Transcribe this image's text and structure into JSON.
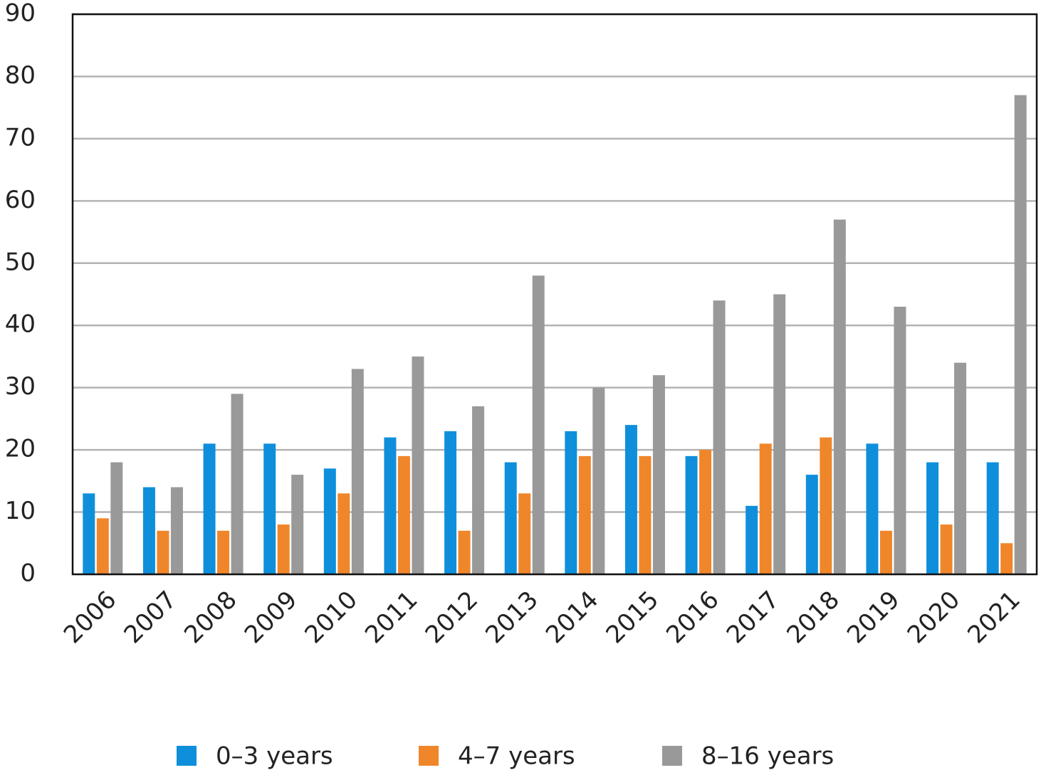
{
  "chart_data": {
    "type": "bar",
    "categories": [
      "2006",
      "2007",
      "2008",
      "2009",
      "2010",
      "2011",
      "2012",
      "2013",
      "2014",
      "2015",
      "2016",
      "2017",
      "2018",
      "2019",
      "2020",
      "2021"
    ],
    "series": [
      {
        "name": "0–3 years",
        "color": "#0f8fdb",
        "values": [
          13,
          14,
          21,
          21,
          17,
          22,
          23,
          18,
          23,
          24,
          19,
          11,
          16,
          21,
          18,
          18
        ]
      },
      {
        "name": "4–7 years",
        "color": "#f0862a",
        "values": [
          9,
          7,
          7,
          8,
          13,
          19,
          7,
          13,
          19,
          19,
          20,
          21,
          22,
          7,
          8,
          5
        ]
      },
      {
        "name": "8–16 years",
        "color": "#999999",
        "values": [
          18,
          14,
          29,
          16,
          33,
          35,
          27,
          48,
          30,
          32,
          44,
          45,
          57,
          43,
          34,
          77
        ]
      }
    ],
    "ylim": [
      0,
      90
    ],
    "yticks": [
      0,
      10,
      20,
      30,
      40,
      50,
      60,
      70,
      80,
      90
    ],
    "grid": true,
    "legend": "bottom"
  }
}
